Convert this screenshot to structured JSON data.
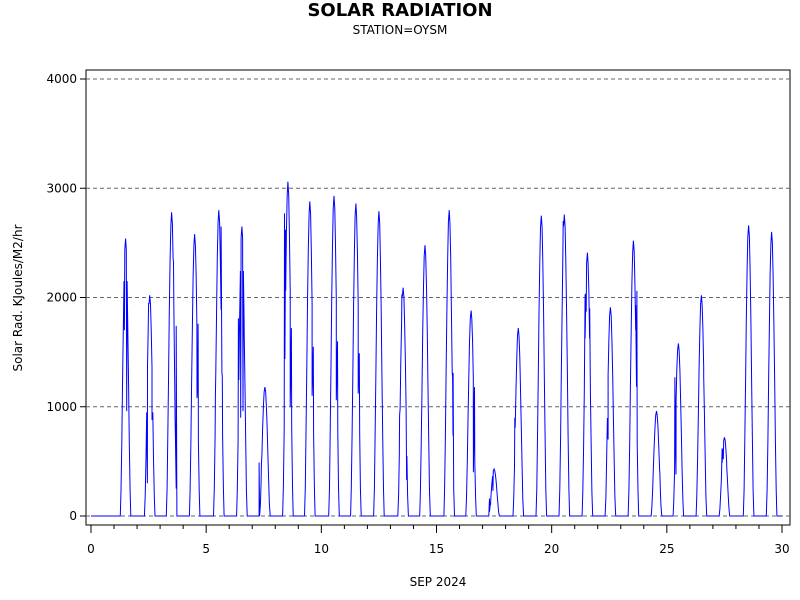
{
  "chart_data": {
    "type": "line",
    "title": "SOLAR RADIATION",
    "subtitle": "STATION=OYSM",
    "xlabel": "SEP 2024",
    "ylabel": "Solar Rad. KJoules/M2/hr",
    "xlim": [
      0,
      30
    ],
    "ylim": [
      0,
      4000
    ],
    "xticks": [
      "0",
      "5",
      "10",
      "15",
      "20",
      "25",
      "30"
    ],
    "yticks": [
      "0",
      "1000",
      "2000",
      "3000",
      "4000"
    ],
    "grid": "horizontal-dashed",
    "line_color": "#0000ff",
    "daily_peaks": [
      {
        "day": 1.5,
        "peak": 2540,
        "dips": [
          [
            1.55,
            960
          ],
          [
            1.45,
            1700
          ]
        ]
      },
      {
        "day": 2.55,
        "peak": 2020,
        "dips": [
          [
            2.45,
            300
          ],
          [
            2.65,
            880
          ],
          [
            2.5,
            1950
          ]
        ]
      },
      {
        "day": 3.5,
        "peak": 2780,
        "dips": [
          [
            3.58,
            2330
          ],
          [
            3.65,
            880
          ],
          [
            3.7,
            1740
          ]
        ]
      },
      {
        "day": 4.5,
        "peak": 2580,
        "dips": [
          [
            4.6,
            1080
          ],
          [
            4.65,
            1760
          ]
        ]
      },
      {
        "day": 5.55,
        "peak": 2800,
        "dips": [
          [
            5.4,
            1100
          ],
          [
            5.7,
            1280
          ],
          [
            5.65,
            2650
          ]
        ]
      },
      {
        "day": 6.55,
        "peak": 2650,
        "dips": [
          [
            6.4,
            1810
          ],
          [
            6.5,
            900
          ],
          [
            6.65,
            1670
          ],
          [
            6.6,
            960
          ]
        ]
      },
      {
        "day": 7.55,
        "peak": 1180,
        "dips": [
          [
            7.3,
            490
          ],
          [
            7.4,
            470
          ]
        ]
      },
      {
        "day": 8.55,
        "peak": 3060,
        "dips": [
          [
            8.45,
            2620
          ],
          [
            8.4,
            2770
          ],
          [
            8.7,
            1720
          ],
          [
            8.65,
            1000
          ]
        ]
      },
      {
        "day": 9.5,
        "peak": 2880,
        "dips": [
          [
            9.6,
            1100
          ],
          [
            9.65,
            1550
          ]
        ]
      },
      {
        "day": 10.55,
        "peak": 2930,
        "dips": [
          [
            10.65,
            1060
          ],
          [
            10.7,
            1600
          ]
        ]
      },
      {
        "day": 11.5,
        "peak": 2860,
        "dips": [
          [
            11.6,
            1120
          ],
          [
            11.65,
            1490
          ]
        ]
      },
      {
        "day": 12.5,
        "peak": 2790,
        "dips": []
      },
      {
        "day": 13.55,
        "peak": 2090,
        "dips": [
          [
            13.4,
            920
          ],
          [
            13.5,
            2030
          ],
          [
            13.7,
            330
          ]
        ]
      },
      {
        "day": 14.5,
        "peak": 2480,
        "dips": []
      },
      {
        "day": 15.55,
        "peak": 2800,
        "dips": [
          [
            15.7,
            1270
          ],
          [
            15.72,
            1310
          ]
        ]
      },
      {
        "day": 16.5,
        "peak": 1880,
        "dips": [
          [
            16.6,
            400
          ],
          [
            16.65,
            1180
          ]
        ]
      },
      {
        "day": 17.5,
        "peak": 430,
        "dips": [
          [
            17.3,
            160
          ],
          [
            17.35,
            110
          ],
          [
            17.45,
            230
          ]
        ]
      },
      {
        "day": 18.55,
        "peak": 1720,
        "dips": [
          [
            18.4,
            900
          ]
        ]
      },
      {
        "day": 19.55,
        "peak": 2750,
        "dips": []
      },
      {
        "day": 20.55,
        "peak": 2760,
        "dips": [
          [
            20.5,
            2700
          ]
        ]
      },
      {
        "day": 21.55,
        "peak": 2410,
        "dips": [
          [
            21.45,
            2030
          ],
          [
            21.5,
            1870
          ],
          [
            21.65,
            1900
          ]
        ]
      },
      {
        "day": 22.55,
        "peak": 1910,
        "dips": [
          [
            22.45,
            700
          ]
        ]
      },
      {
        "day": 23.55,
        "peak": 2520,
        "dips": [
          [
            23.65,
            1930
          ],
          [
            23.7,
            2060
          ]
        ]
      },
      {
        "day": 24.55,
        "peak": 960,
        "dips": [
          [
            24.7,
            380
          ]
        ]
      },
      {
        "day": 25.5,
        "peak": 1580,
        "dips": [
          [
            25.35,
            1270
          ],
          [
            25.4,
            380
          ]
        ]
      },
      {
        "day": 26.5,
        "peak": 2020,
        "dips": [
          [
            26.6,
            1280
          ]
        ]
      },
      {
        "day": 27.5,
        "peak": 720,
        "dips": [
          [
            27.4,
            620
          ],
          [
            27.45,
            520
          ],
          [
            27.6,
            460
          ]
        ]
      },
      {
        "day": 28.55,
        "peak": 2660,
        "dips": []
      },
      {
        "day": 29.55,
        "peak": 2600,
        "dips": []
      }
    ]
  }
}
